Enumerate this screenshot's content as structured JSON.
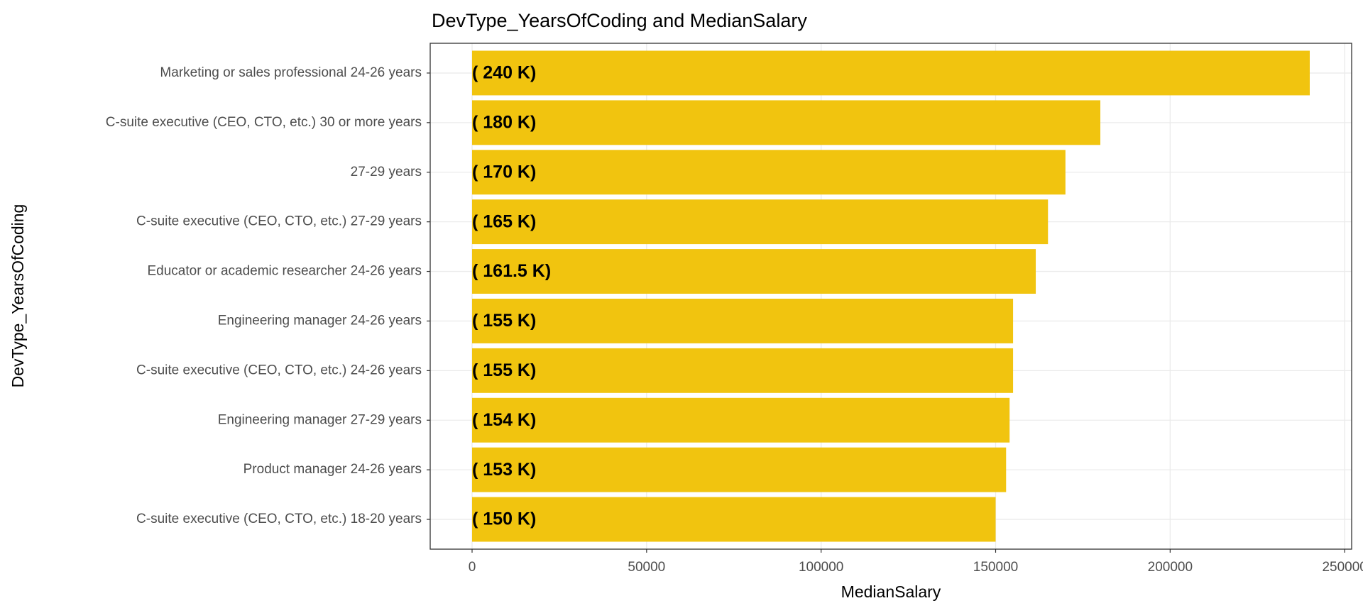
{
  "chart_data": {
    "type": "bar",
    "orientation": "horizontal",
    "title": "DevType_YearsOfCoding and MedianSalary",
    "x_label": "MedianSalary",
    "y_label": "DevType_YearsOfCoding",
    "categories": [
      "Marketing or sales professional 24-26 years",
      "C-suite executive (CEO, CTO, etc.) 30 or more years",
      "27-29 years",
      "C-suite executive (CEO, CTO, etc.) 27-29 years",
      "Educator or academic researcher 24-26 years",
      "Engineering manager 24-26 years",
      "C-suite executive (CEO, CTO, etc.) 24-26 years",
      "Engineering manager 27-29 years",
      "Product manager 24-26 years",
      "C-suite executive (CEO, CTO, etc.) 18-20 years"
    ],
    "values": [
      240000,
      180000,
      170000,
      165000,
      161500,
      155000,
      155000,
      154000,
      153000,
      150000
    ],
    "value_labels": [
      "( 240 K)",
      "( 180 K)",
      "( 170 K)",
      "( 165 K)",
      "( 161.5 K)",
      "( 155 K)",
      "( 155 K)",
      "( 154 K)",
      "( 153 K)",
      "( 150 K)"
    ],
    "color": "#f1c40f",
    "xlim": [
      -12000,
      252000
    ],
    "xticks": [
      0,
      50000,
      100000,
      150000,
      200000,
      250000
    ],
    "grid": true
  }
}
